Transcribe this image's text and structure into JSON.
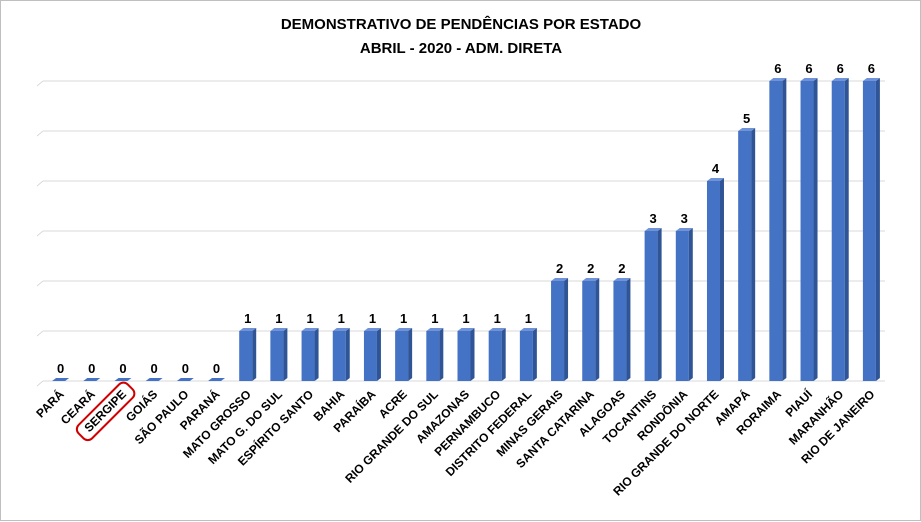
{
  "chart_data": {
    "type": "bar",
    "title": "DEMONSTRATIVO DE PENDÊNCIAS POR ESTADO",
    "subtitle": "ABRIL - 2020 - ADM. DIRETA",
    "xlabel": "",
    "ylabel": "",
    "ylim": [
      0,
      6
    ],
    "grid": true,
    "legend": "none",
    "bar_color": "#4472c4",
    "highlight_color": "#d00000",
    "highlighted_category": "SERGIPE",
    "categories": [
      "PARÁ",
      "CEARÁ",
      "SERGIPE",
      "GOIÁS",
      "SÃO PAULO",
      "PARANÁ",
      "MATO GROSSO",
      "MATO G. DO SUL",
      "ESPÍRITO SANTO",
      "BAHIA",
      "PARAÍBA",
      "ACRE",
      "RIO GRANDE DO SUL",
      "AMAZONAS",
      "PERNAMBUCO",
      "DISTRITO FEDERAL",
      "MINAS GERAIS",
      "SANTA CATARINA",
      "ALAGOAS",
      "TOCANTINS",
      "RONDÔNIA",
      "RIO GRANDE DO NORTE",
      "AMAPÁ",
      "RORAIMA",
      "PIAUÍ",
      "MARANHÃO",
      "RIO DE JANEIRO"
    ],
    "values": [
      0,
      0,
      0,
      0,
      0,
      0,
      1,
      1,
      1,
      1,
      1,
      1,
      1,
      1,
      1,
      1,
      2,
      2,
      2,
      3,
      3,
      4,
      5,
      6,
      6,
      6,
      6
    ]
  }
}
